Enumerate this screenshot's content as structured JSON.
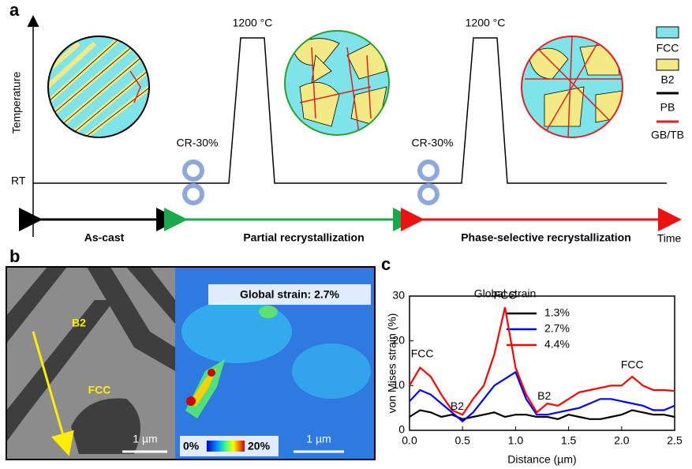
{
  "panel_a": {
    "label": "a",
    "y_axis_label": "Temperature",
    "rt_label": "RT",
    "x_axis_label": "Time",
    "anneal_labels": [
      "1200 °C",
      "1200 °C"
    ],
    "rolling_labels": [
      "CR-30%",
      "CR-30%"
    ],
    "stages": [
      "As-cast",
      "Partial recrystallization",
      "Phase-selective recrystallization"
    ],
    "legend": [
      "FCC",
      "B2",
      "PB",
      "GB/TB"
    ]
  },
  "panel_b": {
    "label": "b",
    "phase_labels": [
      "B2",
      "FCC"
    ],
    "scale_bars": [
      "1 µm",
      "1 µm"
    ],
    "strain_label": "Global strain: 2.7%",
    "colorbar_labels": [
      "0%",
      "20%"
    ]
  },
  "chart_data": {
    "type": "line",
    "label": "c",
    "x_label": "Distance (µm)",
    "y_label": "von Mises strain (%)",
    "legend_title": "Global strain",
    "annotations": [
      "FCC",
      "B2",
      "FCC",
      "B2",
      "FCC"
    ],
    "x": [
      0,
      0.1,
      0.2,
      0.3,
      0.4,
      0.5,
      0.6,
      0.7,
      0.8,
      0.9,
      1.0,
      1.1,
      1.2,
      1.3,
      1.4,
      1.5,
      1.6,
      1.7,
      1.8,
      1.9,
      2.0,
      2.1,
      2.2,
      2.3,
      2.4,
      2.5
    ],
    "series": [
      {
        "name": "1.3%",
        "color": "#000000",
        "values": [
          3,
          4.5,
          4,
          3,
          3.5,
          2.5,
          3,
          3.5,
          4,
          3,
          3.5,
          3.5,
          3,
          3,
          2.5,
          3.5,
          3,
          2.5,
          2.5,
          3,
          3.5,
          4.5,
          4,
          3.5,
          3.5,
          3
        ]
      },
      {
        "name": "2.7%",
        "color": "#0000ff",
        "values": [
          6.5,
          9,
          8,
          6,
          4,
          2,
          4,
          7,
          10,
          11.5,
          13,
          7,
          3.5,
          3.5,
          4,
          4.5,
          5,
          6,
          7,
          7,
          6.5,
          6,
          5.5,
          4.5,
          4.5,
          5.5
        ]
      },
      {
        "name": "4.4%",
        "color": "#ff0000",
        "values": [
          10,
          14,
          12,
          8,
          4.5,
          3.5,
          7,
          10,
          17,
          27.5,
          14,
          8,
          4,
          6,
          5.5,
          7,
          8.5,
          9,
          9.5,
          10,
          10,
          12,
          10,
          9,
          9,
          8.8
        ]
      }
    ],
    "xlim": [
      0,
      2.5
    ],
    "ylim": [
      0,
      30
    ],
    "xticks": [
      {
        "value": 0,
        "label": "0.0"
      },
      0.5,
      {
        "value": 1,
        "label": "1.0"
      },
      1.5,
      {
        "value": 2,
        "label": "2.0"
      },
      2.5
    ],
    "yticks": [
      0,
      10,
      20,
      30
    ]
  }
}
